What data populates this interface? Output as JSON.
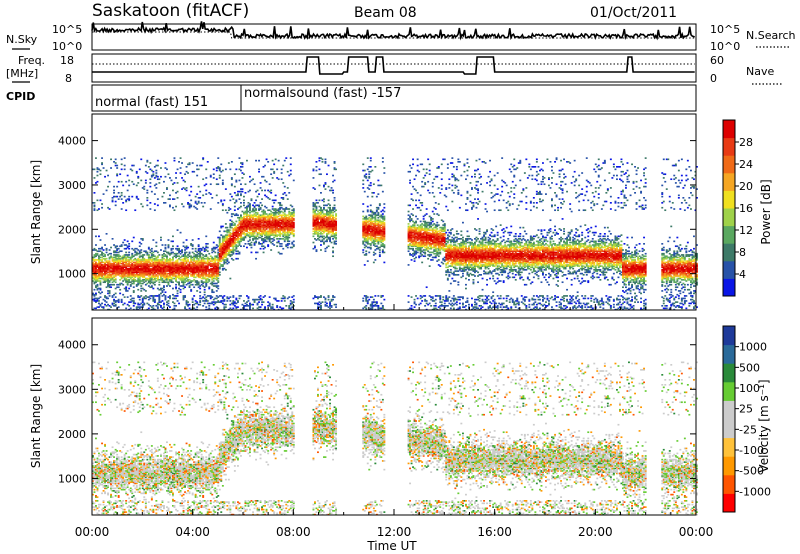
{
  "header": {
    "station": "Saskatoon (fitACF)",
    "beam": "Beam 08",
    "date": "01/Oct/2011"
  },
  "noise_panel": {
    "left_label": "N.Sky",
    "left_ticks": [
      "10^5",
      "10^0"
    ],
    "right_label": "N.Search",
    "right_ticks": [
      "10^5",
      "10^0"
    ]
  },
  "freq_panel": {
    "left_label_1": "Freq.",
    "left_label_2": "[MHz]",
    "left_ticks": [
      "18",
      "8"
    ],
    "right_label": "Nave",
    "right_ticks": [
      "60",
      "0"
    ]
  },
  "cpid_panel": {
    "label": "CPID",
    "modes": [
      {
        "name": "normal (fast)",
        "id": "151"
      },
      {
        "name": "normalsound (fast)",
        "id": "-157"
      }
    ]
  },
  "colors": {
    "power": [
      "#0a16e6",
      "#2752a8",
      "#3d7a68",
      "#5aa860",
      "#9fd24a",
      "#f0e020",
      "#f5a623",
      "#f06a17",
      "#e83a14",
      "#dd0000"
    ],
    "velocity": [
      "#ff0000",
      "#ff5500",
      "#ff9900",
      "#ffc23a",
      "#cccccc",
      "#cccccc",
      "#66cc33",
      "#2a8a3a",
      "#2a6a9a",
      "#1e3a9a"
    ]
  },
  "chart_data": [
    {
      "type": "heatmap",
      "name": "power",
      "ylabel": "Slant Range [km]",
      "yticks": [
        1000,
        2000,
        3000,
        4000
      ],
      "ylim": [
        180,
        4600
      ],
      "xlim": [
        0,
        24
      ],
      "colorbar_label": "Power [dB]",
      "colorbar_ticks": [
        "4",
        "8",
        "12",
        "16",
        "20",
        "24",
        "28"
      ],
      "colorbar_range": [
        0,
        30
      ]
    },
    {
      "type": "heatmap",
      "name": "velocity",
      "ylabel": "Slant Range [km]",
      "yticks": [
        1000,
        2000,
        3000,
        4000
      ],
      "ylim": [
        180,
        4600
      ],
      "xlim": [
        0,
        24
      ],
      "colorbar_label": "Velocity [m s⁻¹]",
      "colorbar_ticks": [
        "-1000",
        "-500",
        "-100",
        "-25",
        "25",
        "100",
        "500",
        "1000"
      ]
    }
  ],
  "time_axis": {
    "tick_labels": [
      "00:00",
      "04:00",
      "08:00",
      "12:00",
      "16:00",
      "20:00",
      "00:00"
    ],
    "label": "Time UT"
  }
}
